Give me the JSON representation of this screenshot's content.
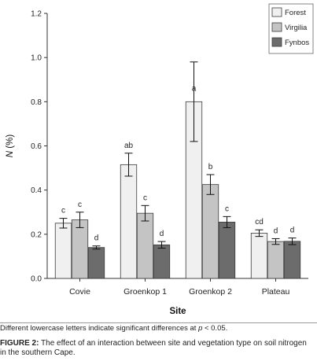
{
  "chart_data": {
    "type": "bar",
    "xlabel": "Site",
    "ylabel_italic": "N",
    "ylabel_rest": " (%)",
    "ylim": [
      0,
      1.2
    ],
    "yticks": [
      "0.0",
      "0.2",
      "0.4",
      "0.6",
      "0.8",
      "1.0",
      "1.2"
    ],
    "ytick_values": [
      0,
      0.2,
      0.4,
      0.6,
      0.8,
      1.0,
      1.2
    ],
    "categories": [
      "Covie",
      "Groenkop 1",
      "Groenkop 2",
      "Plateau"
    ],
    "legend_position": "top-right",
    "series": [
      {
        "name": "Forest",
        "color": "#f0f0f0",
        "values": [
          0.25,
          0.515,
          0.8,
          0.205
        ],
        "errors": [
          0.022,
          0.052,
          0.18,
          0.015
        ],
        "letters": [
          "c",
          "ab",
          "a",
          "cd"
        ]
      },
      {
        "name": "Virgilia",
        "color": "#c4c4c4",
        "values": [
          0.265,
          0.295,
          0.425,
          0.167
        ],
        "errors": [
          0.035,
          0.035,
          0.045,
          0.013
        ],
        "letters": [
          "c",
          "c",
          "b",
          "d"
        ]
      },
      {
        "name": "Fynbos",
        "color": "#6c6c6c",
        "values": [
          0.14,
          0.152,
          0.255,
          0.168
        ],
        "errors": [
          0.007,
          0.015,
          0.025,
          0.015
        ],
        "letters": [
          "d",
          "d",
          "c",
          "d"
        ]
      }
    ]
  },
  "footnote": {
    "before": "Different lowercase letters indicate significant differences at ",
    "p": "p",
    "after": " < 0.05."
  },
  "caption": {
    "label": "FIGURE 2:",
    "text": " The effect of an interaction between site and vegetation type on soil nitrogen in the southern Cape."
  }
}
